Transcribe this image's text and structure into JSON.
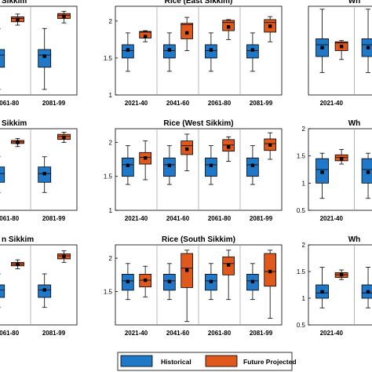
{
  "colors": {
    "historical": "#1f78c8",
    "projected": "#e0581c",
    "axis": "#000000",
    "separator": "#9a9a9a"
  },
  "legend": {
    "historical": "Historical",
    "projected": "Future Projected"
  },
  "chart_data": [
    {
      "type": "boxplot",
      "title": "Sikkim",
      "panel": "row1-col1",
      "categories": [
        "2061-80",
        "2081-99"
      ],
      "ylim": [
        1,
        2.6
      ],
      "yticks": [],
      "series": [
        {
          "name": "Historical",
          "boxes": [
            {
              "min": 1.1,
              "q1": 1.5,
              "median": 1.72,
              "mean": 1.7,
              "q3": 1.82,
              "max": 2.2
            },
            {
              "min": 1.1,
              "q1": 1.5,
              "median": 1.72,
              "mean": 1.7,
              "q3": 1.82,
              "max": 2.2
            }
          ]
        },
        {
          "name": "Future Projected",
          "boxes": [
            {
              "min": 2.26,
              "q1": 2.32,
              "median": 2.38,
              "mean": 2.36,
              "q3": 2.41,
              "max": 2.46
            },
            {
              "min": 2.3,
              "q1": 2.38,
              "median": 2.44,
              "mean": 2.42,
              "q3": 2.47,
              "max": 2.51
            }
          ]
        }
      ]
    },
    {
      "type": "boxplot",
      "title": "Rice (East Sikkim)",
      "panel": "row1-col2",
      "categories": [
        "2021-40",
        "2041-60",
        "2061-80",
        "2081-99"
      ],
      "ylim": [
        1,
        2.2
      ],
      "yticks": [
        "1",
        "1.5",
        "2"
      ],
      "series": [
        {
          "name": "Historical",
          "boxes": [
            {
              "min": 1.32,
              "q1": 1.5,
              "median": 1.6,
              "mean": 1.61,
              "q3": 1.68,
              "max": 1.84
            },
            {
              "min": 1.32,
              "q1": 1.5,
              "median": 1.6,
              "mean": 1.61,
              "q3": 1.68,
              "max": 1.84
            },
            {
              "min": 1.32,
              "q1": 1.5,
              "median": 1.6,
              "mean": 1.61,
              "q3": 1.68,
              "max": 1.84
            },
            {
              "min": 1.32,
              "q1": 1.5,
              "median": 1.6,
              "mean": 1.61,
              "q3": 1.68,
              "max": 1.84
            }
          ]
        },
        {
          "name": "Future Projected",
          "boxes": [
            {
              "min": 1.72,
              "q1": 1.77,
              "median": 1.85,
              "mean": 1.79,
              "q3": 1.86,
              "max": 1.87
            },
            {
              "min": 1.6,
              "q1": 1.76,
              "median": 1.95,
              "mean": 1.84,
              "q3": 1.97,
              "max": 2.05
            },
            {
              "min": 1.75,
              "q1": 1.87,
              "median": 1.98,
              "mean": 1.92,
              "q3": 2.01,
              "max": 2.02
            },
            {
              "min": 1.72,
              "q1": 1.85,
              "median": 1.98,
              "mean": 1.93,
              "q3": 2.02,
              "max": 2.06
            }
          ]
        }
      ]
    },
    {
      "type": "boxplot",
      "title": "Wh",
      "panel": "row1-col3",
      "categories": [
        "2021-40",
        "20"
      ],
      "ylim": [
        0.5,
        2
      ],
      "yticks": [],
      "series": [
        {
          "name": "Historical",
          "boxes": [
            {
              "min": 0.88,
              "q1": 1.15,
              "median": 1.35,
              "mean": 1.3,
              "q3": 1.45,
              "max": 1.95
            },
            {
              "min": 0.88,
              "q1": 1.15,
              "median": 1.35,
              "mean": 1.3,
              "q3": 1.45,
              "max": 1.95
            }
          ]
        },
        {
          "name": "Future Projected",
          "boxes": [
            {
              "min": 1.1,
              "q1": 1.25,
              "median": 1.38,
              "mean": 1.32,
              "q3": 1.4,
              "max": 1.42
            }
          ]
        }
      ]
    },
    {
      "type": "boxplot",
      "title": "Sikkim",
      "panel": "row2-col1",
      "categories": [
        "2061-80",
        "2081-99"
      ],
      "ylim": [
        1,
        2.6
      ],
      "yticks": [],
      "series": [
        {
          "name": "Historical",
          "boxes": [
            {
              "min": 1.35,
              "q1": 1.55,
              "median": 1.72,
              "mean": 1.72,
              "q3": 1.85,
              "max": 2.05
            },
            {
              "min": 1.35,
              "q1": 1.55,
              "median": 1.72,
              "mean": 1.72,
              "q3": 1.85,
              "max": 2.05
            }
          ]
        },
        {
          "name": "Future Projected",
          "boxes": [
            {
              "min": 2.25,
              "q1": 2.31,
              "median": 2.34,
              "mean": 2.33,
              "q3": 2.37,
              "max": 2.41
            },
            {
              "min": 2.33,
              "q1": 2.39,
              "median": 2.45,
              "mean": 2.43,
              "q3": 2.49,
              "max": 2.53
            }
          ]
        }
      ]
    },
    {
      "type": "boxplot",
      "title": "Rice (West Sikkim)",
      "panel": "row2-col2",
      "categories": [
        "2021-40",
        "2041-60",
        "2061-80",
        "2081-99"
      ],
      "ylim": [
        1,
        2.2
      ],
      "yticks": [
        "1",
        "1.5",
        "2"
      ],
      "series": [
        {
          "name": "Historical",
          "boxes": [
            {
              "min": 1.38,
              "q1": 1.5,
              "median": 1.67,
              "mean": 1.66,
              "q3": 1.77,
              "max": 1.95
            },
            {
              "min": 1.38,
              "q1": 1.5,
              "median": 1.67,
              "mean": 1.66,
              "q3": 1.77,
              "max": 1.95
            },
            {
              "min": 1.38,
              "q1": 1.5,
              "median": 1.67,
              "mean": 1.66,
              "q3": 1.77,
              "max": 1.95
            },
            {
              "min": 1.38,
              "q1": 1.5,
              "median": 1.67,
              "mean": 1.66,
              "q3": 1.77,
              "max": 1.95
            }
          ]
        },
        {
          "name": "Future Projected",
          "boxes": [
            {
              "min": 1.45,
              "q1": 1.68,
              "median": 1.78,
              "mean": 1.77,
              "q3": 1.85,
              "max": 2.02
            },
            {
              "min": 1.58,
              "q1": 1.82,
              "median": 1.95,
              "mean": 1.9,
              "q3": 2.02,
              "max": 2.12
            },
            {
              "min": 1.72,
              "q1": 1.87,
              "median": 1.96,
              "mean": 1.93,
              "q3": 2.04,
              "max": 2.08
            },
            {
              "min": 1.75,
              "q1": 1.88,
              "median": 1.98,
              "mean": 1.96,
              "q3": 2.05,
              "max": 2.14
            }
          ]
        }
      ]
    },
    {
      "type": "boxplot",
      "title": "Wh",
      "panel": "row2-col3",
      "categories": [
        "2021-40",
        "20"
      ],
      "ylim": [
        0.5,
        2
      ],
      "yticks": [
        "0.5",
        "1",
        "1.5",
        "2"
      ],
      "series": [
        {
          "name": "Historical",
          "boxes": [
            {
              "min": 0.72,
              "q1": 1.0,
              "median": 1.25,
              "mean": 1.2,
              "q3": 1.45,
              "max": 1.55
            },
            {
              "min": 0.72,
              "q1": 1.0,
              "median": 1.25,
              "mean": 1.2,
              "q3": 1.45,
              "max": 1.55
            }
          ]
        },
        {
          "name": "Future Projected",
          "boxes": [
            {
              "min": 1.35,
              "q1": 1.41,
              "median": 1.47,
              "mean": 1.45,
              "q3": 1.52,
              "max": 1.62
            }
          ]
        }
      ]
    },
    {
      "type": "boxplot",
      "title": "n Sikkim",
      "panel": "row3-col1",
      "categories": [
        "2061-80",
        "2081-99"
      ],
      "ylim": [
        1,
        2.6
      ],
      "yticks": [],
      "series": [
        {
          "name": "Historical",
          "boxes": [
            {
              "min": 1.35,
              "q1": 1.55,
              "median": 1.7,
              "mean": 1.7,
              "q3": 1.8,
              "max": 2.02
            },
            {
              "min": 1.35,
              "q1": 1.55,
              "median": 1.7,
              "mean": 1.7,
              "q3": 1.8,
              "max": 2.02
            }
          ]
        },
        {
          "name": "Future Projected",
          "boxes": [
            {
              "min": 2.12,
              "q1": 2.18,
              "median": 2.22,
              "mean": 2.21,
              "q3": 2.25,
              "max": 2.3
            },
            {
              "min": 2.25,
              "q1": 2.32,
              "median": 2.38,
              "mean": 2.37,
              "q3": 2.42,
              "max": 2.48
            }
          ]
        }
      ]
    },
    {
      "type": "boxplot",
      "title": "Rice (South Sikkim)",
      "panel": "row3-col2",
      "categories": [
        "2021-40",
        "2041-60",
        "2061-80",
        "2081-99"
      ],
      "ylim": [
        1,
        2.2
      ],
      "yticks": [
        "1.5",
        "2"
      ],
      "series": [
        {
          "name": "Historical",
          "boxes": [
            {
              "min": 1.38,
              "q1": 1.52,
              "median": 1.66,
              "mean": 1.65,
              "q3": 1.76,
              "max": 1.92
            },
            {
              "min": 1.38,
              "q1": 1.52,
              "median": 1.66,
              "mean": 1.65,
              "q3": 1.76,
              "max": 1.92
            },
            {
              "min": 1.38,
              "q1": 1.52,
              "median": 1.66,
              "mean": 1.65,
              "q3": 1.76,
              "max": 1.92
            },
            {
              "min": 1.38,
              "q1": 1.52,
              "median": 1.66,
              "mean": 1.65,
              "q3": 1.76,
              "max": 1.92
            }
          ]
        },
        {
          "name": "Future Projected",
          "boxes": [
            {
              "min": 1.42,
              "q1": 1.57,
              "median": 1.67,
              "mean": 1.67,
              "q3": 1.76,
              "max": 1.88
            },
            {
              "min": 1.05,
              "q1": 1.56,
              "median": 1.85,
              "mean": 1.82,
              "q3": 2.07,
              "max": 2.12
            },
            {
              "min": 1.38,
              "q1": 1.75,
              "median": 1.92,
              "mean": 1.9,
              "q3": 2.02,
              "max": 2.12
            },
            {
              "min": 1.1,
              "q1": 1.58,
              "median": 1.8,
              "mean": 1.8,
              "q3": 2.07,
              "max": 2.12
            }
          ]
        }
      ]
    },
    {
      "type": "boxplot",
      "title": "Wh",
      "panel": "row3-col3",
      "categories": [
        "2021-40",
        "20"
      ],
      "ylim": [
        0.5,
        2
      ],
      "yticks": [
        "0.5",
        "1",
        "1.5",
        "2"
      ],
      "series": [
        {
          "name": "Historical",
          "boxes": [
            {
              "min": 0.82,
              "q1": 1.0,
              "median": 1.1,
              "mean": 1.12,
              "q3": 1.25,
              "max": 1.58
            },
            {
              "min": 0.82,
              "q1": 1.0,
              "median": 1.1,
              "mean": 1.12,
              "q3": 1.25,
              "max": 1.58
            }
          ]
        },
        {
          "name": "Future Projected",
          "boxes": [
            {
              "min": 1.35,
              "q1": 1.39,
              "median": 1.44,
              "mean": 1.44,
              "q3": 1.48,
              "max": 1.53
            }
          ]
        }
      ]
    }
  ]
}
